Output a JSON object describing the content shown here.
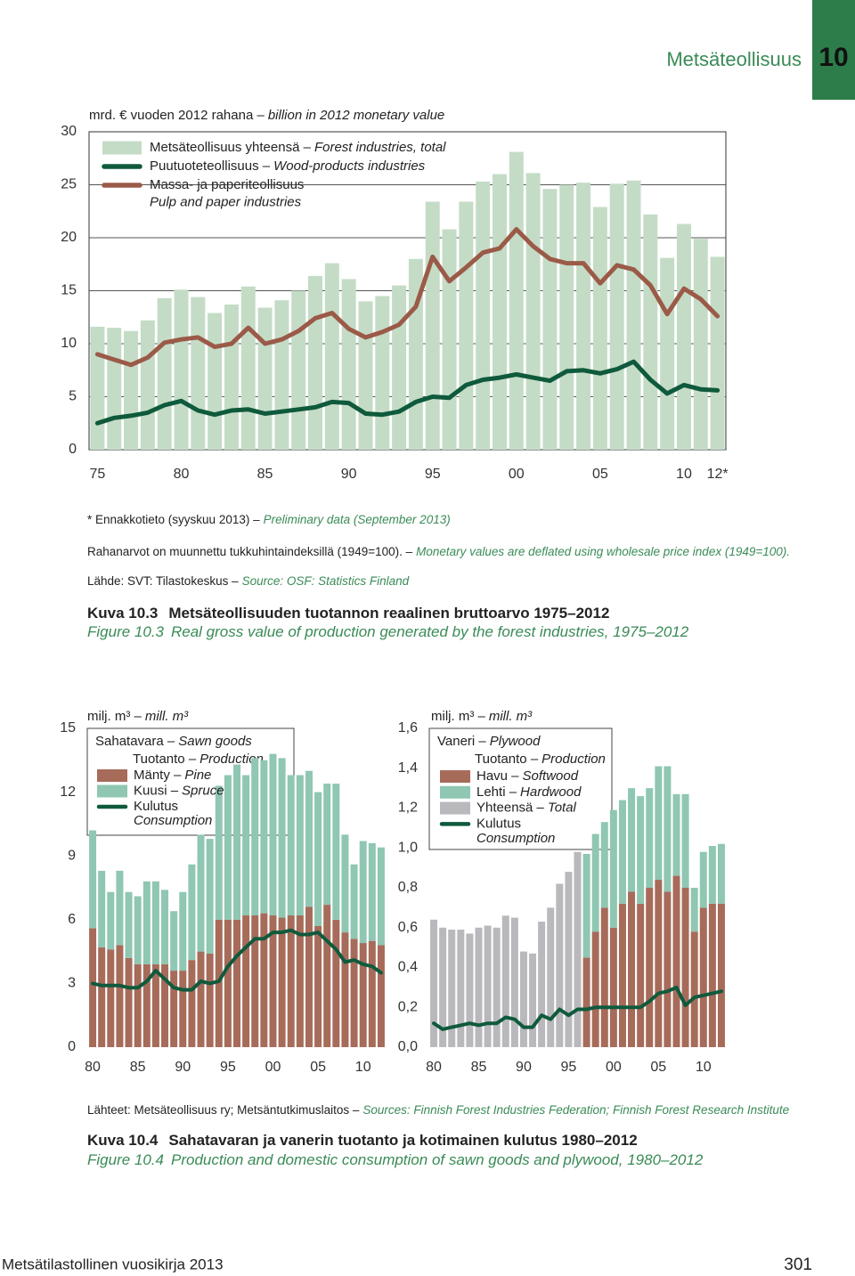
{
  "page": {
    "header": {
      "section": "Metsäteollisuus",
      "chapter": "10"
    },
    "figure_10_3": {
      "notes": [
        {
          "fi": "* Ennakkotieto (syyskuu 2013) –",
          "en": "Preliminary data (September 2013)"
        },
        {
          "fi": "Rahanarvot on muunnettu tukkuhintaindeksillä (1949=100). –",
          "en": "Monetary values are deflated using wholesale price index (1949=100)."
        },
        {
          "fi": "Lähde: SVT: Tilastokeskus –",
          "en": "Source: OSF: Statistics Finland"
        }
      ],
      "caption": {
        "label_fi": "Kuva 10.3",
        "title_fi": "Metsäteollisuuden tuotannon reaalinen bruttoarvo 1975–2012",
        "label_en": "Figure 10.3",
        "title_en": "Real gross value of production generated by the forest industries, 1975–2012"
      }
    },
    "figure_10_4": {
      "sources": {
        "fi": "Lähteet: Metsäteollisuus ry; Metsäntutkimuslaitos –",
        "en": "Sources: Finnish Forest Industries Federation; Finnish Forest Research Institute"
      },
      "caption": {
        "label_fi": "Kuva 10.4",
        "title_fi": "Sahatavaran ja vanerin tuotanto ja kotimainen kulutus 1980–2012",
        "label_en": "Figure 10.4",
        "title_en": "Production and domestic consumption of sawn goods and plywood, 1980–2012"
      }
    },
    "footer": {
      "publication": "Metsätilastollinen vuosikirja 2013",
      "page_number": "301"
    }
  },
  "chart_data": [
    {
      "type": "bar",
      "unit": "mrd. € vuoden 2012 rahana –",
      "unit_en": "billion in 2012 monetary value",
      "categories": [
        "75",
        null,
        null,
        null,
        null,
        "80",
        null,
        null,
        null,
        null,
        "85",
        null,
        null,
        null,
        null,
        "90",
        null,
        null,
        null,
        null,
        "95",
        null,
        null,
        null,
        null,
        "00",
        null,
        null,
        null,
        null,
        "05",
        null,
        null,
        null,
        null,
        "10",
        null,
        "12*"
      ],
      "ylim": [
        0,
        30
      ],
      "yticks": [
        0,
        5,
        10,
        15,
        20,
        25,
        30
      ],
      "grid": true,
      "series": [
        {
          "name": "Metsäteollisuus yhteensä –",
          "name_en": "Forest industries, total",
          "type": "bar",
          "color": "#c4dcc6",
          "values": [
            11.6,
            11.5,
            11.2,
            12.2,
            14.3,
            15.1,
            14.4,
            12.9,
            13.7,
            15.4,
            13.4,
            14.1,
            15.0,
            16.4,
            17.6,
            16.1,
            14.0,
            14.5,
            15.5,
            18.0,
            23.4,
            20.8,
            23.4,
            25.3,
            26.0,
            28.1,
            26.1,
            24.6,
            25.0,
            25.2,
            22.9,
            25.1,
            25.4,
            22.2,
            18.1,
            21.3,
            19.9,
            18.2
          ]
        },
        {
          "name": "Puutuoteteollisuus –",
          "name_en": "Wood-products industries",
          "type": "line",
          "color": "#0f5a3c",
          "values": [
            2.5,
            3.0,
            3.2,
            3.5,
            4.2,
            4.6,
            3.7,
            3.3,
            3.7,
            3.8,
            3.4,
            3.6,
            3.8,
            4.0,
            4.5,
            4.4,
            3.4,
            3.3,
            3.6,
            4.5,
            5.0,
            4.9,
            6.1,
            6.6,
            6.8,
            7.1,
            6.8,
            6.5,
            7.4,
            7.5,
            7.2,
            7.6,
            8.3,
            6.6,
            5.3,
            6.1,
            5.7,
            5.6
          ]
        },
        {
          "name": "Massa- ja paperiteollisuus",
          "name_en": "Pulp and paper industries",
          "type": "line",
          "color": "#9b5a48",
          "values": [
            9.0,
            8.5,
            8.0,
            8.7,
            10.1,
            10.4,
            10.6,
            9.7,
            10.0,
            11.5,
            10.0,
            10.4,
            11.2,
            12.4,
            12.9,
            11.4,
            10.6,
            11.1,
            11.8,
            13.5,
            18.2,
            15.9,
            17.2,
            18.6,
            19.0,
            20.8,
            19.2,
            18.0,
            17.6,
            17.6,
            15.7,
            17.4,
            17.0,
            15.5,
            12.8,
            15.2,
            14.2,
            12.6
          ]
        }
      ]
    },
    {
      "type": "bar",
      "unit": "milj. m³ –",
      "unit_en": "mill. m³",
      "legend_title": "Sahatavara –",
      "legend_title_en": "Sawn goods",
      "legend_subtitle": "Tuotanto –",
      "legend_subtitle_en": "Production",
      "categories": [
        "80",
        null,
        null,
        null,
        null,
        "85",
        null,
        null,
        null,
        null,
        "90",
        null,
        null,
        null,
        null,
        "95",
        null,
        null,
        null,
        null,
        "00",
        null,
        null,
        null,
        null,
        "05",
        null,
        null,
        null,
        null,
        "10",
        null,
        null
      ],
      "ylim": [
        0,
        15
      ],
      "yticks": [
        0,
        3,
        6,
        9,
        12,
        15
      ],
      "grid": false,
      "series": [
        {
          "name": "Mänty –",
          "name_en": "Pine",
          "type": "bar",
          "color": "#a76b5a",
          "values": [
            5.6,
            4.7,
            4.6,
            4.8,
            4.2,
            3.9,
            3.9,
            3.9,
            3.9,
            3.6,
            3.6,
            4.1,
            4.5,
            4.4,
            6.0,
            6.0,
            6.0,
            6.2,
            6.2,
            6.3,
            6.2,
            6.1,
            6.2,
            6.2,
            6.6,
            5.7,
            6.7,
            6.0,
            5.4,
            5.1,
            4.9,
            5.0,
            4.8
          ]
        },
        {
          "name": "Kuusi –",
          "name_en": "Spruce",
          "type": "bar",
          "color": "#8fc7b2",
          "values": [
            4.6,
            3.6,
            2.7,
            3.5,
            3.1,
            3.2,
            3.9,
            3.9,
            3.5,
            2.8,
            3.7,
            4.5,
            5.5,
            5.4,
            6.3,
            6.8,
            7.3,
            6.6,
            7.4,
            7.2,
            7.6,
            7.5,
            6.6,
            6.6,
            6.4,
            6.3,
            5.7,
            6.4,
            4.6,
            3.5,
            4.8,
            4.6,
            4.6
          ]
        },
        {
          "name": "Kulutus",
          "name_en": "Consumption",
          "type": "line",
          "color": "#0f5a3c",
          "values": [
            3.0,
            2.9,
            2.9,
            2.9,
            2.8,
            2.8,
            3.1,
            3.6,
            3.2,
            2.8,
            2.7,
            2.7,
            3.1,
            3.0,
            3.1,
            3.8,
            4.3,
            4.7,
            5.1,
            5.1,
            5.4,
            5.4,
            5.5,
            5.3,
            5.3,
            5.4,
            5.0,
            4.6,
            4.0,
            4.1,
            3.9,
            3.8,
            3.5
          ]
        }
      ]
    },
    {
      "type": "bar",
      "unit": "milj. m³ –",
      "unit_en": "mill. m³",
      "legend_title": "Vaneri –",
      "legend_title_en": "Plywood",
      "legend_subtitle": "Tuotanto –",
      "legend_subtitle_en": "Production",
      "categories": [
        "80",
        null,
        null,
        null,
        null,
        "85",
        null,
        null,
        null,
        null,
        "90",
        null,
        null,
        null,
        null,
        "95",
        null,
        null,
        null,
        null,
        "00",
        null,
        null,
        null,
        null,
        "05",
        null,
        null,
        null,
        null,
        "10",
        null,
        null
      ],
      "ylim": [
        0,
        1.6
      ],
      "yticks": [
        {
          "value": 0,
          "label": "0,0"
        },
        {
          "value": 0.2,
          "label": "0,2"
        },
        {
          "value": 0.4,
          "label": "0,4"
        },
        {
          "value": 0.6,
          "label": "0,6"
        },
        {
          "value": 0.8,
          "label": "0,8"
        },
        {
          "value": 1.0,
          "label": "1,0"
        },
        {
          "value": 1.2,
          "label": "1,2"
        },
        {
          "value": 1.4,
          "label": "1,4"
        },
        {
          "value": 1.6,
          "label": "1,6"
        }
      ],
      "grid": false,
      "series": [
        {
          "name": "Havu –",
          "name_en": "Softwood",
          "type": "bar",
          "color": "#a76b5a",
          "values": [
            null,
            null,
            null,
            null,
            null,
            null,
            null,
            null,
            null,
            null,
            null,
            null,
            null,
            null,
            null,
            null,
            null,
            0.45,
            0.58,
            0.7,
            0.6,
            0.72,
            0.78,
            0.72,
            0.8,
            0.84,
            0.78,
            0.86,
            0.8,
            0.58,
            0.7,
            0.72,
            0.72
          ]
        },
        {
          "name": "Lehti –",
          "name_en": "Hardwood",
          "type": "bar",
          "color": "#8fc7b2",
          "values": [
            null,
            null,
            null,
            null,
            null,
            null,
            null,
            null,
            null,
            null,
            null,
            null,
            null,
            null,
            null,
            null,
            null,
            0.52,
            0.49,
            0.43,
            0.59,
            0.52,
            0.52,
            0.54,
            0.5,
            0.57,
            0.63,
            0.41,
            0.47,
            0.22,
            0.28,
            0.29,
            0.3
          ]
        },
        {
          "name": "Yhteensä –",
          "name_en": "Total",
          "type": "bar",
          "color": "#b9b9bd",
          "values": [
            0.64,
            0.6,
            0.59,
            0.59,
            0.57,
            0.6,
            0.61,
            0.6,
            0.66,
            0.65,
            0.48,
            0.47,
            0.63,
            0.7,
            0.82,
            0.88,
            0.98,
            null,
            null,
            null,
            null,
            null,
            null,
            null,
            null,
            null,
            null,
            null,
            null,
            null,
            null,
            null,
            null
          ]
        },
        {
          "name": "Kulutus",
          "name_en": "Consumption",
          "type": "line",
          "color": "#0f5a3c",
          "values": [
            0.12,
            0.09,
            0.1,
            0.11,
            0.12,
            0.11,
            0.12,
            0.12,
            0.15,
            0.14,
            0.1,
            0.1,
            0.16,
            0.14,
            0.19,
            0.16,
            0.19,
            0.19,
            0.2,
            0.2,
            0.2,
            0.2,
            0.2,
            0.2,
            0.23,
            0.27,
            0.28,
            0.3,
            0.21,
            0.25,
            0.26,
            0.27,
            0.28
          ]
        }
      ]
    }
  ]
}
